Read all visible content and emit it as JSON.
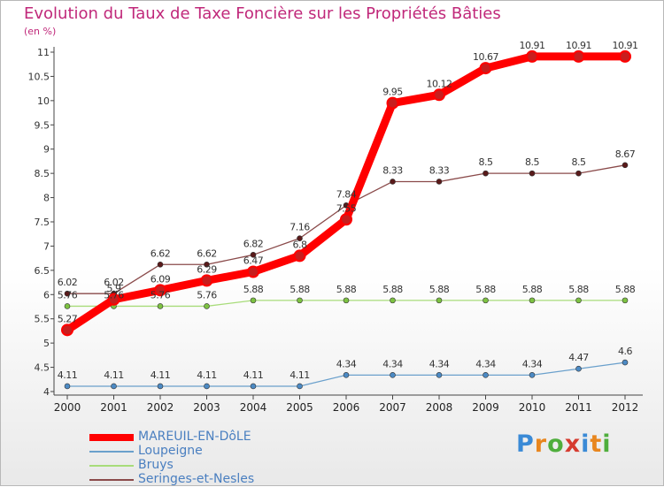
{
  "title": "Evolution du Taux de Taxe Foncière sur les Propriétés Bâties",
  "subtitle": "(en %)",
  "logo": {
    "text": "Proxiti",
    "colors": [
      "#3a8ad6",
      "#e8861e",
      "#4fae3c",
      "#d63b2f",
      "#3a8ad6",
      "#e8861e",
      "#4fae3c"
    ]
  },
  "chart_data": {
    "type": "line",
    "title": "Evolution du Taux de Taxe Foncière sur les Propriétés Bâties",
    "ylabel": "(en %)",
    "xlabel": "",
    "x": [
      "2000",
      "2001",
      "2002",
      "2003",
      "2004",
      "2005",
      "2006",
      "2007",
      "2008",
      "2009",
      "2010",
      "2011",
      "2012"
    ],
    "ylim": [
      4,
      11
    ],
    "yticks": [
      "4",
      "4.5",
      "5",
      "5.5",
      "6",
      "6.5",
      "7",
      "7.5",
      "8",
      "8.5",
      "9",
      "9.5",
      "10",
      "10.5",
      "11"
    ],
    "grid": false,
    "legend": "bottom-left",
    "series": [
      {
        "name": "MAREUIL-EN-DôLE",
        "color": "#ff0000",
        "marker": "#c81e1e",
        "emphasis": true,
        "values": [
          5.27,
          5.9,
          6.09,
          6.29,
          6.47,
          6.8,
          7.55,
          9.95,
          10.12,
          10.67,
          10.91,
          10.91,
          10.91
        ],
        "labels": [
          "5.27",
          "5.9",
          "6.09",
          "6.29",
          "6.47",
          "6.8",
          "7.55",
          "9.95",
          "10.12",
          "10.67",
          "10.91",
          "10.91",
          "10.91"
        ]
      },
      {
        "name": "Loupeigne",
        "color": "#6aa0cc",
        "marker": "#4c8ac4",
        "emphasis": false,
        "values": [
          4.11,
          4.11,
          4.11,
          4.11,
          4.11,
          4.11,
          4.34,
          4.34,
          4.34,
          4.34,
          4.34,
          4.47,
          4.6
        ],
        "labels": [
          "4.11",
          "4.11",
          "4.11",
          "4.11",
          "4.11",
          "4.11",
          "4.34",
          "4.34",
          "4.34",
          "4.34",
          "4.34",
          "4.47",
          "4.6"
        ]
      },
      {
        "name": "Bruys",
        "color": "#a8dc7a",
        "marker": "#7dc242",
        "emphasis": false,
        "values": [
          5.76,
          5.76,
          5.76,
          5.76,
          5.88,
          5.88,
          5.88,
          5.88,
          5.88,
          5.88,
          5.88,
          5.88,
          5.88
        ],
        "labels": [
          "5.76",
          "5.76",
          "5.76",
          "5.76",
          "5.88",
          "5.88",
          "5.88",
          "5.88",
          "5.88",
          "5.88",
          "5.88",
          "5.88",
          "5.88"
        ]
      },
      {
        "name": "Seringes-et-Nesles",
        "color": "#8a4a4a",
        "marker": "#5a1a1a",
        "emphasis": false,
        "values": [
          6.02,
          6.02,
          6.62,
          6.62,
          6.82,
          7.16,
          7.84,
          8.33,
          8.33,
          8.5,
          8.5,
          8.5,
          8.67
        ],
        "labels": [
          "6.02",
          "6.02",
          "6.62",
          "6.62",
          "6.82",
          "7.16",
          "7.84",
          "8.33",
          "8.33",
          "8.5",
          "8.5",
          "8.5",
          "8.67"
        ]
      }
    ]
  }
}
